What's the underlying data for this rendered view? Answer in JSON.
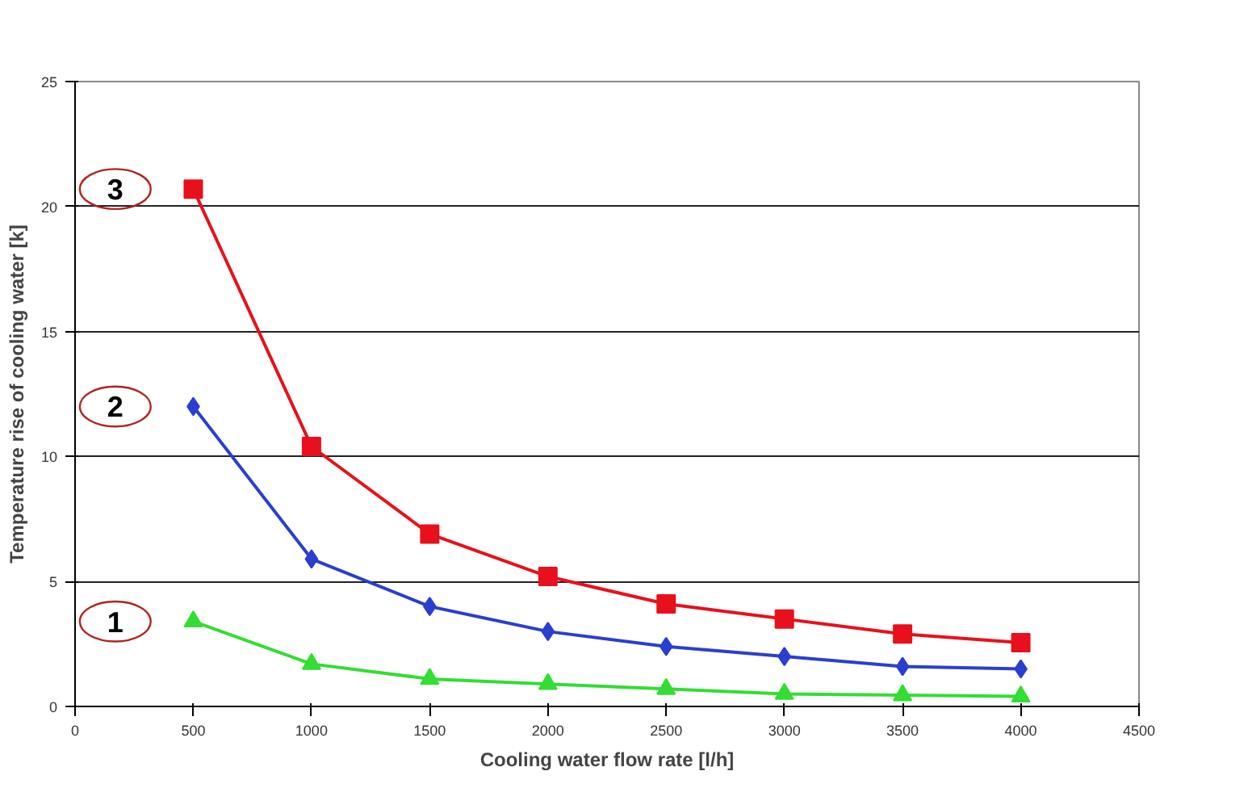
{
  "chart_data": {
    "type": "line",
    "xlabel": "Cooling water flow rate [l/h]",
    "ylabel": "Temperature rise of cooling water [k]",
    "x": [
      500,
      1000,
      1500,
      2000,
      2500,
      3000,
      3500,
      4000
    ],
    "series": [
      {
        "name": "3",
        "color": "#e8101c",
        "marker": "square",
        "values": [
          20.7,
          10.4,
          6.9,
          5.2,
          4.1,
          3.5,
          2.9,
          2.55
        ]
      },
      {
        "name": "2",
        "color": "#2a3fd0",
        "marker": "diamond",
        "values": [
          12.0,
          5.9,
          4.0,
          3.0,
          2.4,
          2.0,
          1.6,
          1.5
        ]
      },
      {
        "name": "1",
        "color": "#33dd33",
        "marker": "triangle",
        "values": [
          3.4,
          1.7,
          1.1,
          0.9,
          0.7,
          0.5,
          0.45,
          0.4
        ]
      }
    ],
    "xlim": [
      0,
      4500
    ],
    "xticks": [
      0,
      500,
      1000,
      1500,
      2000,
      2500,
      3000,
      3500,
      4000,
      4500
    ],
    "ylim": [
      0,
      25
    ],
    "yticks": [
      0,
      5,
      10,
      15,
      20,
      25
    ],
    "grid": "y",
    "line_style": "solid"
  }
}
